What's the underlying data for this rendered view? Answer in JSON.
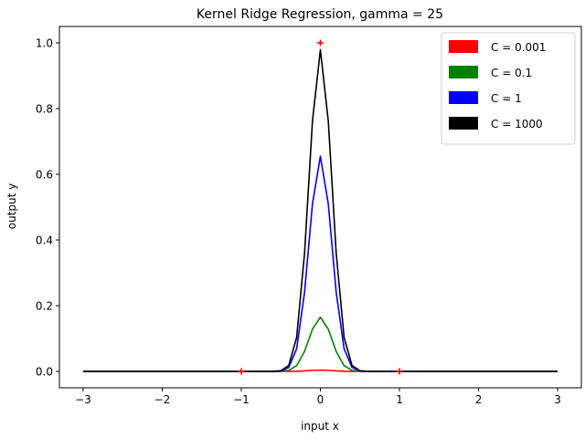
{
  "chart_data": {
    "type": "line",
    "title": "Kernel Ridge Regression, gamma = 25",
    "xlabel": "input x",
    "ylabel": "output y",
    "xlim": [
      -3.3,
      3.3
    ],
    "ylim": [
      -0.05,
      1.05
    ],
    "xticks": [
      -3,
      -2,
      -1,
      0,
      1,
      2,
      3
    ],
    "xtick_labels": [
      "−3",
      "−2",
      "−1",
      "0",
      "1",
      "2",
      "3"
    ],
    "yticks": [
      0.0,
      0.2,
      0.4,
      0.6,
      0.8,
      1.0
    ],
    "ytick_labels": [
      "0.0",
      "0.2",
      "0.4",
      "0.6",
      "0.8",
      "1.0"
    ],
    "grid": false,
    "legend_position": "top-right",
    "training_points": {
      "x": [
        -1,
        0,
        1
      ],
      "y": [
        0,
        1,
        0
      ],
      "color": "#ff0000",
      "marker": "+"
    },
    "curve_x_range": [
      -3,
      3
    ],
    "curve_samples": 61,
    "kernel_gamma": 25,
    "series": [
      {
        "name": "C = 0.001",
        "color": "#ff0000",
        "peak": 0.004
      },
      {
        "name": "C = 0.1",
        "color": "#008000",
        "peak": 0.165
      },
      {
        "name": "C = 1",
        "color": "#0000ff",
        "peak": 0.655
      },
      {
        "name": "C = 1000",
        "color": "#000000",
        "peak": 0.979
      }
    ]
  }
}
